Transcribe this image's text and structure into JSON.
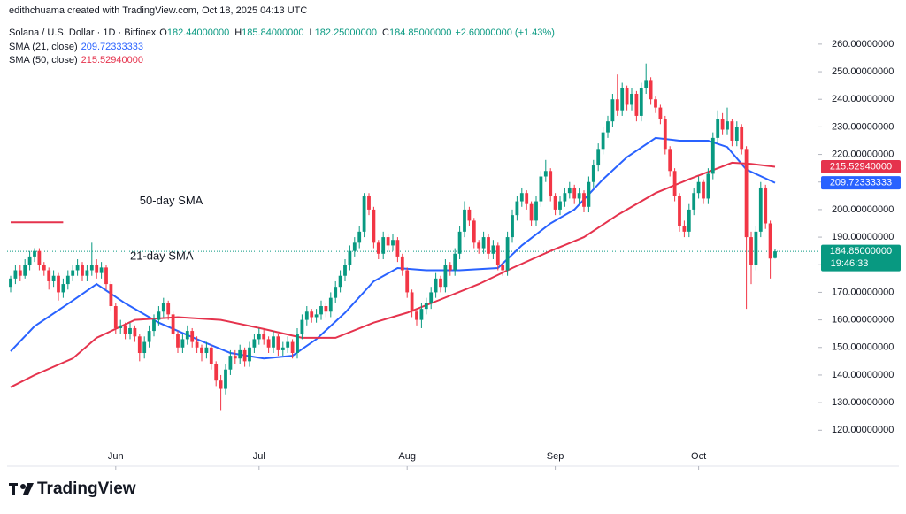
{
  "header": {
    "credit": "edithchuama created with TradingView.com, Oct 18, 2025 04:13 UTC",
    "symbol": "Solana / U.S. Dollar · 1D · Bitfinex",
    "ohlc_legend": [
      {
        "key": "O",
        "value": "182.44000000"
      },
      {
        "key": "H",
        "value": "185.84000000"
      },
      {
        "key": "L",
        "value": "182.25000000"
      },
      {
        "key": "C",
        "value": "184.85000000"
      }
    ],
    "change": "+2.60000000 (+1.43%)"
  },
  "chart_data": {
    "type": "candlestick",
    "up_color": "#089981",
    "down_color": "#f23645",
    "candles": [
      [
        172,
        176,
        170,
        175
      ],
      [
        175,
        180,
        173,
        178
      ],
      [
        178,
        180,
        174,
        176
      ],
      [
        176,
        182,
        175,
        180
      ],
      [
        180,
        185,
        178,
        183
      ],
      [
        183,
        186,
        181,
        185
      ],
      [
        185,
        186,
        178,
        180
      ],
      [
        180,
        181,
        176,
        178
      ],
      [
        178,
        179,
        171,
        174
      ],
      [
        174,
        178,
        172,
        176
      ],
      [
        176,
        177,
        167,
        170
      ],
      [
        170,
        175,
        168,
        173
      ],
      [
        173,
        178,
        171,
        176
      ],
      [
        176,
        180,
        174,
        178
      ],
      [
        178,
        182,
        176,
        180
      ],
      [
        180,
        181,
        174,
        176
      ],
      [
        176,
        180,
        174,
        178
      ],
      [
        178,
        188,
        176,
        180
      ],
      [
        180,
        182,
        175,
        177
      ],
      [
        177,
        181,
        175,
        179
      ],
      [
        179,
        180,
        171,
        173
      ],
      [
        173,
        174,
        163,
        165
      ],
      [
        165,
        166,
        155,
        157
      ],
      [
        157,
        160,
        155,
        158
      ],
      [
        158,
        159,
        153,
        155
      ],
      [
        155,
        159,
        153,
        157
      ],
      [
        157,
        158,
        152,
        154
      ],
      [
        154,
        155,
        145,
        148
      ],
      [
        148,
        154,
        146,
        152
      ],
      [
        152,
        158,
        150,
        156
      ],
      [
        156,
        162,
        154,
        160
      ],
      [
        160,
        165,
        158,
        163
      ],
      [
        163,
        168,
        161,
        166
      ],
      [
        166,
        167,
        160,
        162
      ],
      [
        162,
        163,
        153,
        155
      ],
      [
        155,
        156,
        148,
        150
      ],
      [
        150,
        155,
        148,
        153
      ],
      [
        153,
        158,
        151,
        156
      ],
      [
        156,
        157,
        150,
        152
      ],
      [
        152,
        154,
        148,
        150
      ],
      [
        150,
        151,
        145,
        148
      ],
      [
        148,
        152,
        146,
        150
      ],
      [
        150,
        151,
        142,
        144
      ],
      [
        144,
        145,
        136,
        138
      ],
      [
        138,
        140,
        127,
        135
      ],
      [
        135,
        144,
        133,
        142
      ],
      [
        142,
        149,
        140,
        147
      ],
      [
        147,
        149,
        144,
        146
      ],
      [
        146,
        151,
        144,
        149
      ],
      [
        149,
        150,
        143,
        145
      ],
      [
        145,
        152,
        143,
        150
      ],
      [
        150,
        155,
        148,
        153
      ],
      [
        153,
        157,
        151,
        155
      ],
      [
        155,
        157,
        151,
        153
      ],
      [
        153,
        154,
        148,
        150
      ],
      [
        150,
        156,
        148,
        154
      ],
      [
        154,
        155,
        147,
        149
      ],
      [
        149,
        152,
        147,
        150
      ],
      [
        150,
        154,
        148,
        152
      ],
      [
        152,
        153,
        146,
        148
      ],
      [
        148,
        157,
        146,
        155
      ],
      [
        155,
        162,
        153,
        160
      ],
      [
        160,
        165,
        158,
        163
      ],
      [
        163,
        164,
        159,
        161
      ],
      [
        161,
        164,
        159,
        162
      ],
      [
        162,
        167,
        160,
        165
      ],
      [
        165,
        166,
        161,
        163
      ],
      [
        163,
        170,
        161,
        168
      ],
      [
        168,
        174,
        166,
        172
      ],
      [
        172,
        178,
        170,
        176
      ],
      [
        176,
        182,
        174,
        180
      ],
      [
        180,
        187,
        178,
        185
      ],
      [
        185,
        190,
        183,
        188
      ],
      [
        188,
        194,
        186,
        192
      ],
      [
        192,
        206,
        190,
        205
      ],
      [
        205,
        206,
        198,
        200
      ],
      [
        200,
        201,
        186,
        188
      ],
      [
        188,
        189,
        182,
        184
      ],
      [
        184,
        192,
        182,
        190
      ],
      [
        190,
        191,
        185,
        187
      ],
      [
        187,
        191,
        185,
        189
      ],
      [
        189,
        190,
        181,
        183
      ],
      [
        183,
        184,
        176,
        178
      ],
      [
        178,
        179,
        168,
        170
      ],
      [
        170,
        171,
        161,
        163
      ],
      [
        163,
        164,
        158,
        160
      ],
      [
        160,
        166,
        157,
        164
      ],
      [
        164,
        168,
        162,
        166
      ],
      [
        166,
        172,
        164,
        170
      ],
      [
        170,
        177,
        168,
        175
      ],
      [
        175,
        176,
        170,
        172
      ],
      [
        172,
        182,
        170,
        180
      ],
      [
        180,
        181,
        176,
        178
      ],
      [
        178,
        186,
        176,
        184
      ],
      [
        184,
        194,
        182,
        192
      ],
      [
        192,
        203,
        190,
        200
      ],
      [
        200,
        201,
        194,
        196
      ],
      [
        196,
        197,
        186,
        188
      ],
      [
        188,
        189,
        184,
        186
      ],
      [
        186,
        192,
        184,
        190
      ],
      [
        190,
        191,
        182,
        184
      ],
      [
        184,
        189,
        182,
        187
      ],
      [
        187,
        188,
        178,
        180
      ],
      [
        180,
        181,
        176,
        178
      ],
      [
        178,
        192,
        176,
        190
      ],
      [
        190,
        200,
        188,
        198
      ],
      [
        198,
        205,
        196,
        203
      ],
      [
        203,
        208,
        201,
        206
      ],
      [
        206,
        207,
        200,
        202
      ],
      [
        202,
        203,
        194,
        196
      ],
      [
        196,
        205,
        194,
        203
      ],
      [
        203,
        214,
        201,
        212
      ],
      [
        212,
        218,
        210,
        214
      ],
      [
        214,
        215,
        203,
        205
      ],
      [
        205,
        206,
        198,
        200
      ],
      [
        200,
        205,
        198,
        203
      ],
      [
        203,
        208,
        201,
        206
      ],
      [
        206,
        210,
        204,
        208
      ],
      [
        208,
        209,
        202,
        204
      ],
      [
        204,
        208,
        202,
        206
      ],
      [
        206,
        207,
        199,
        201
      ],
      [
        201,
        212,
        199,
        210
      ],
      [
        210,
        218,
        208,
        216
      ],
      [
        216,
        224,
        214,
        222
      ],
      [
        222,
        230,
        220,
        228
      ],
      [
        228,
        234,
        226,
        232
      ],
      [
        232,
        242,
        230,
        240
      ],
      [
        240,
        249,
        234,
        236
      ],
      [
        236,
        246,
        234,
        244
      ],
      [
        244,
        245,
        236,
        238
      ],
      [
        238,
        244,
        236,
        242
      ],
      [
        242,
        243,
        232,
        234
      ],
      [
        234,
        246,
        232,
        244
      ],
      [
        244,
        253,
        242,
        247
      ],
      [
        247,
        248,
        238,
        240
      ],
      [
        240,
        241,
        235,
        237
      ],
      [
        237,
        238,
        231,
        233
      ],
      [
        233,
        234,
        220,
        222
      ],
      [
        222,
        223,
        212,
        214
      ],
      [
        214,
        215,
        203,
        205
      ],
      [
        205,
        206,
        192,
        194
      ],
      [
        194,
        196,
        190,
        192
      ],
      [
        192,
        202,
        190,
        200
      ],
      [
        200,
        208,
        198,
        206
      ],
      [
        206,
        212,
        204,
        210
      ],
      [
        210,
        211,
        202,
        204
      ],
      [
        204,
        215,
        202,
        213
      ],
      [
        213,
        228,
        211,
        226
      ],
      [
        226,
        236,
        224,
        233
      ],
      [
        233,
        235,
        227,
        229
      ],
      [
        229,
        237,
        227,
        232
      ],
      [
        232,
        233,
        223,
        225
      ],
      [
        225,
        232,
        223,
        230
      ],
      [
        230,
        231,
        220,
        222
      ],
      [
        222,
        223,
        164,
        190
      ],
      [
        190,
        192,
        173,
        180
      ],
      [
        180,
        194,
        178,
        192
      ],
      [
        192,
        210,
        190,
        208
      ],
      [
        208,
        209,
        193,
        195
      ],
      [
        195,
        196,
        175,
        182.25
      ],
      [
        182.44,
        185.84,
        182.25,
        184.85
      ]
    ],
    "series": [
      {
        "name": "SMA (21, close)",
        "legend_value": "209.72333333",
        "color": "#2962ff",
        "x": [
          0,
          5,
          13,
          18,
          24,
          31,
          39,
          46,
          53,
          59,
          64,
          70,
          76,
          81,
          87,
          94,
          102,
          107,
          113,
          118,
          124,
          129,
          135,
          140,
          146,
          150,
          154,
          160
        ],
        "values": [
          148.6,
          157.7,
          167,
          173,
          166,
          159,
          153,
          148,
          146,
          147,
          153,
          162.6,
          174,
          178.8,
          178,
          178,
          178.8,
          187,
          195,
          200,
          211,
          219,
          226,
          225,
          225,
          222.7,
          214.5,
          209.72333333
        ]
      },
      {
        "name": "SMA (50, close)",
        "legend_value": "215.52940000",
        "color": "#e5334d",
        "x": [
          0,
          5,
          13,
          18,
          26,
          35,
          44,
          53,
          61,
          68,
          76,
          83,
          90,
          98,
          105,
          113,
          120,
          127,
          135,
          142,
          148,
          151,
          155,
          160
        ],
        "values": [
          135.6,
          140,
          146,
          153.5,
          160,
          161,
          160,
          156.7,
          153.5,
          153.5,
          159,
          162.6,
          167.4,
          173,
          178.8,
          185,
          190,
          198,
          206,
          211,
          215,
          217,
          216.6,
          215.5294
        ]
      }
    ],
    "hline": {
      "value": 195.4,
      "x": [
        0,
        11
      ],
      "color": "#e5334d"
    },
    "annotations": [
      {
        "text": "50-day SMA",
        "x": 27,
        "y": 203,
        "color": "#e5334d"
      },
      {
        "text": "21-day SMA",
        "x": 25,
        "y": 183,
        "color": "#2962ff"
      }
    ],
    "price_tags": [
      {
        "value": 215.5294,
        "label": "215.52940000",
        "color": "#e5334d"
      },
      {
        "value": 209.72333333,
        "label": "209.72333333",
        "color": "#2962ff"
      },
      {
        "value": 184.85,
        "label": "184.85000000",
        "color": "#089981",
        "countdown": "19:46:33"
      }
    ],
    "ylim": [
      114,
      276
    ],
    "yticks": [
      {
        "value": 120,
        "label": "120.00000000"
      },
      {
        "value": 130,
        "label": "130.00000000"
      },
      {
        "value": 140,
        "label": "140.00000000"
      },
      {
        "value": 150,
        "label": "150.00000000"
      },
      {
        "value": 160,
        "label": "160.00000000"
      },
      {
        "value": 170,
        "label": "170.00000000"
      },
      {
        "value": 180,
        "label": "180.00000000"
      },
      {
        "value": 190,
        "label": "190.00000000"
      },
      {
        "value": 200,
        "label": "200.00000000"
      },
      {
        "value": 210,
        "label": "210.00000000"
      },
      {
        "value": 220,
        "label": "220.00000000"
      },
      {
        "value": 230,
        "label": "230.00000000"
      },
      {
        "value": 240,
        "label": "240.00000000"
      },
      {
        "value": 250,
        "label": "250.00000000"
      },
      {
        "value": 260,
        "label": "260.00000000"
      }
    ],
    "xticks": [
      {
        "value": 22,
        "label": "Jun"
      },
      {
        "value": 52,
        "label": "Jul"
      },
      {
        "value": 83,
        "label": "Aug"
      },
      {
        "value": 114,
        "label": "Sep"
      },
      {
        "value": 144,
        "label": "Oct"
      }
    ],
    "grid": false
  },
  "footer": {
    "brand": "TradingView"
  }
}
